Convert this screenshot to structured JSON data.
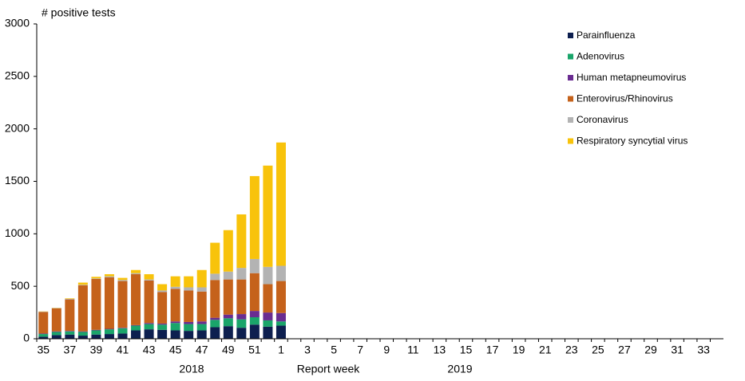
{
  "chart_data": {
    "type": "stacked_bar",
    "y_label": "# positive tests",
    "x_label": "Report  week",
    "annotations": [
      "2018",
      "2019"
    ],
    "categories": [
      "35",
      null,
      "37",
      null,
      "39",
      null,
      "41",
      null,
      "43",
      null,
      "45",
      null,
      "47",
      null,
      "49",
      null,
      "51",
      null,
      "1",
      null,
      "3",
      null,
      "5",
      null,
      "7",
      null,
      "9",
      null,
      "11",
      null,
      "13",
      null,
      "15",
      null,
      "17",
      null,
      "19",
      null,
      "21",
      null,
      "23",
      null,
      "25",
      null,
      "27",
      null,
      "29",
      null,
      "31",
      null,
      "33",
      null
    ],
    "series": [
      {
        "name": "Parainfluenza",
        "color": "#0d1f4f",
        "values": [
          20,
          35,
          40,
          30,
          40,
          45,
          50,
          80,
          90,
          85,
          80,
          75,
          80,
          110,
          120,
          105,
          135,
          115,
          125,
          null,
          null,
          null,
          null,
          null,
          null,
          null,
          null,
          null,
          null,
          null,
          null,
          null,
          null,
          null,
          null,
          null,
          null,
          null,
          null,
          null,
          null,
          null,
          null,
          null,
          null,
          null,
          null,
          null,
          null,
          null,
          null,
          null
        ]
      },
      {
        "name": "Adenovirus",
        "color": "#1aa56a",
        "values": [
          25,
          30,
          30,
          35,
          40,
          45,
          50,
          45,
          50,
          50,
          70,
          65,
          60,
          70,
          75,
          80,
          70,
          60,
          40,
          null,
          null,
          null,
          null,
          null,
          null,
          null,
          null,
          null,
          null,
          null,
          null,
          null,
          null,
          null,
          null,
          null,
          null,
          null,
          null,
          null,
          null,
          null,
          null,
          null,
          null,
          null,
          null,
          null,
          null,
          null,
          null,
          null
        ]
      },
      {
        "name": "Human metapneumovirus",
        "color": "#6a2c91",
        "values": [
          5,
          5,
          5,
          5,
          5,
          5,
          5,
          5,
          10,
          10,
          15,
          20,
          25,
          20,
          35,
          50,
          60,
          75,
          80,
          null,
          null,
          null,
          null,
          null,
          null,
          null,
          null,
          null,
          null,
          null,
          null,
          null,
          null,
          null,
          null,
          null,
          null,
          null,
          null,
          null,
          null,
          null,
          null,
          null,
          null,
          null,
          null,
          null,
          null,
          null,
          null,
          null
        ]
      },
      {
        "name": "Enterovirus/Rhinovirus",
        "color": "#c5621b",
        "values": [
          205,
          220,
          300,
          440,
          485,
          490,
          445,
          485,
          405,
          300,
          310,
          300,
          285,
          360,
          335,
          330,
          360,
          270,
          305,
          null,
          null,
          null,
          null,
          null,
          null,
          null,
          null,
          null,
          null,
          null,
          null,
          null,
          null,
          null,
          null,
          null,
          null,
          null,
          null,
          null,
          null,
          null,
          null,
          null,
          null,
          null,
          null,
          null,
          null,
          null,
          null,
          null
        ]
      },
      {
        "name": "Coronavirus",
        "color": "#b3b3b3",
        "values": [
          3,
          3,
          5,
          5,
          5,
          10,
          10,
          10,
          10,
          15,
          20,
          30,
          40,
          60,
          75,
          110,
          135,
          165,
          145,
          null,
          null,
          null,
          null,
          null,
          null,
          null,
          null,
          null,
          null,
          null,
          null,
          null,
          null,
          null,
          null,
          null,
          null,
          null,
          null,
          null,
          null,
          null,
          null,
          null,
          null,
          null,
          null,
          null,
          null,
          null,
          null,
          null
        ]
      },
      {
        "name": "Respiratory syncytial virus",
        "color": "#f8c30b",
        "values": [
          2,
          2,
          5,
          20,
          15,
          20,
          20,
          30,
          50,
          60,
          100,
          105,
          165,
          295,
          395,
          510,
          790,
          965,
          1175,
          null,
          null,
          null,
          null,
          null,
          null,
          null,
          null,
          null,
          null,
          null,
          null,
          null,
          null,
          null,
          null,
          null,
          null,
          null,
          null,
          null,
          null,
          null,
          null,
          null,
          null,
          null,
          null,
          null,
          null,
          null,
          null,
          null
        ]
      }
    ],
    "ylim": [
      0,
      3000
    ],
    "yticks": [
      0,
      500,
      1000,
      1500,
      2000,
      2500,
      3000
    ],
    "legend": "top-right"
  }
}
